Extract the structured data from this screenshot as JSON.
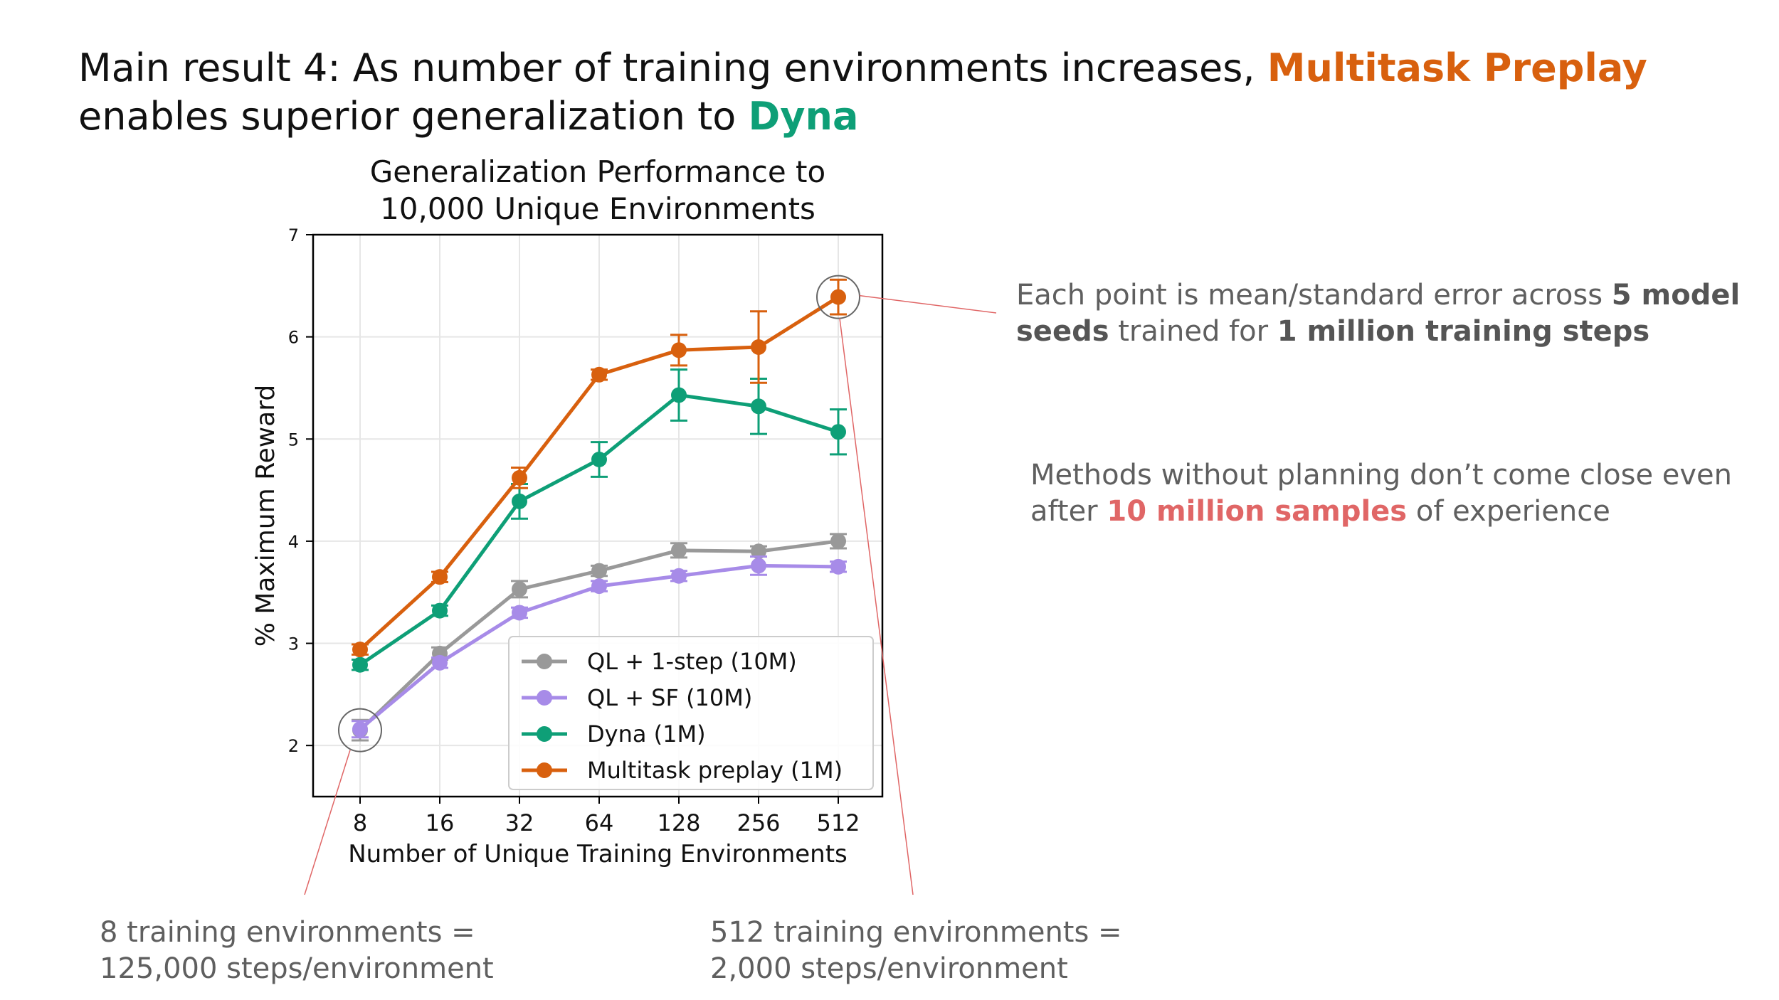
{
  "headline": {
    "prefix": "Main result 4: As number of training environments increases,",
    "method_a": "Multitask Preplay",
    "middle": "enables superior generalization to",
    "method_b": "Dyna"
  },
  "notes": {
    "seeds": {
      "t1": "Each point is mean/standard error across",
      "b1": "5 model seeds",
      "t2": "trained for",
      "b2": "1 million training steps"
    },
    "planning": {
      "t1": "Methods without planning don’t come close even after",
      "b1": "10 million samples",
      "t2": "of experience"
    },
    "low": {
      "line1": "8 training environments =",
      "line2": "125,000 steps/environment"
    },
    "high": {
      "line1": "512 training environments =",
      "line2": "2,000 steps/environment"
    }
  },
  "colors": {
    "accent_orange": "#d8600e",
    "accent_green": "#0e9f77",
    "accent_red": "#e06666"
  },
  "chart_data": {
    "type": "line",
    "title": [
      "Generalization Performance to",
      "10,000 Unique Environments"
    ],
    "xlabel": "Number of Unique Training Environments",
    "ylabel": "% Maximum Reward",
    "categories": [
      "8",
      "16",
      "32",
      "64",
      "128",
      "256",
      "512"
    ],
    "ylim": [
      1.5,
      7
    ],
    "yticks": [
      2,
      3,
      4,
      5,
      6,
      7
    ],
    "grid": true,
    "legend_position": "lower-right",
    "series": [
      {
        "name": "QL + 1-step (10M)",
        "color": "#999999",
        "values": [
          2.15,
          2.9,
          3.53,
          3.71,
          3.91,
          3.9,
          4.0
        ],
        "errors": [
          0.1,
          0.06,
          0.08,
          0.05,
          0.07,
          0.05,
          0.07
        ]
      },
      {
        "name": "QL + SF (10M)",
        "color": "#a78be8",
        "values": [
          2.16,
          2.81,
          3.3,
          3.56,
          3.66,
          3.76,
          3.75
        ],
        "errors": [
          0.08,
          0.05,
          0.05,
          0.05,
          0.05,
          0.09,
          0.05
        ]
      },
      {
        "name": "Dyna (1M)",
        "color": "#0e9f77",
        "values": [
          2.79,
          3.32,
          4.39,
          4.8,
          5.43,
          5.32,
          5.07
        ],
        "errors": [
          0.05,
          0.05,
          0.17,
          0.17,
          0.25,
          0.27,
          0.22
        ]
      },
      {
        "name": "Multitask preplay (1M)",
        "color": "#d8600e",
        "values": [
          2.94,
          3.65,
          4.62,
          5.63,
          5.87,
          5.9,
          6.39
        ],
        "errors": [
          0.05,
          0.05,
          0.1,
          0.05,
          0.15,
          0.35,
          0.17
        ]
      }
    ]
  }
}
